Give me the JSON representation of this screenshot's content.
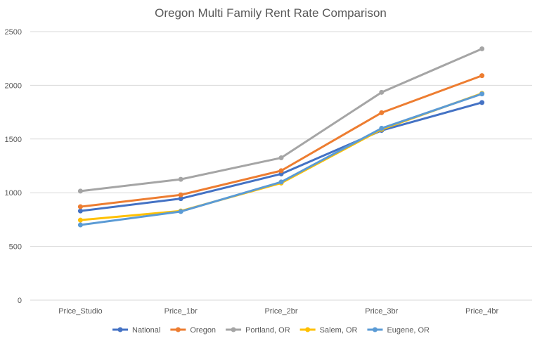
{
  "chart_data": {
    "type": "line",
    "title": "Oregon Multi Family Rent Rate Comparison",
    "categories": [
      "Price_Studio",
      "Price_1br",
      "Price_2br",
      "Price_3br",
      "Price_4br"
    ],
    "ylim": [
      0,
      2500
    ],
    "yticks": [
      0,
      500,
      1000,
      1500,
      2000,
      2500
    ],
    "grid": true,
    "legend_position": "bottom",
    "series": [
      {
        "name": "National",
        "color": "#4472C4",
        "values": [
          830,
          945,
          1175,
          1580,
          1840
        ]
      },
      {
        "name": "Oregon",
        "color": "#ED7D31",
        "values": [
          870,
          980,
          1205,
          1745,
          2090
        ]
      },
      {
        "name": "Portland, OR",
        "color": "#A5A5A5",
        "values": [
          1015,
          1125,
          1325,
          1935,
          2340
        ]
      },
      {
        "name": "Salem, OR",
        "color": "#FFC000",
        "values": [
          745,
          830,
          1090,
          1590,
          1925
        ]
      },
      {
        "name": "Eugene, OR",
        "color": "#5B9BD5",
        "values": [
          700,
          825,
          1100,
          1600,
          1920
        ]
      }
    ]
  }
}
